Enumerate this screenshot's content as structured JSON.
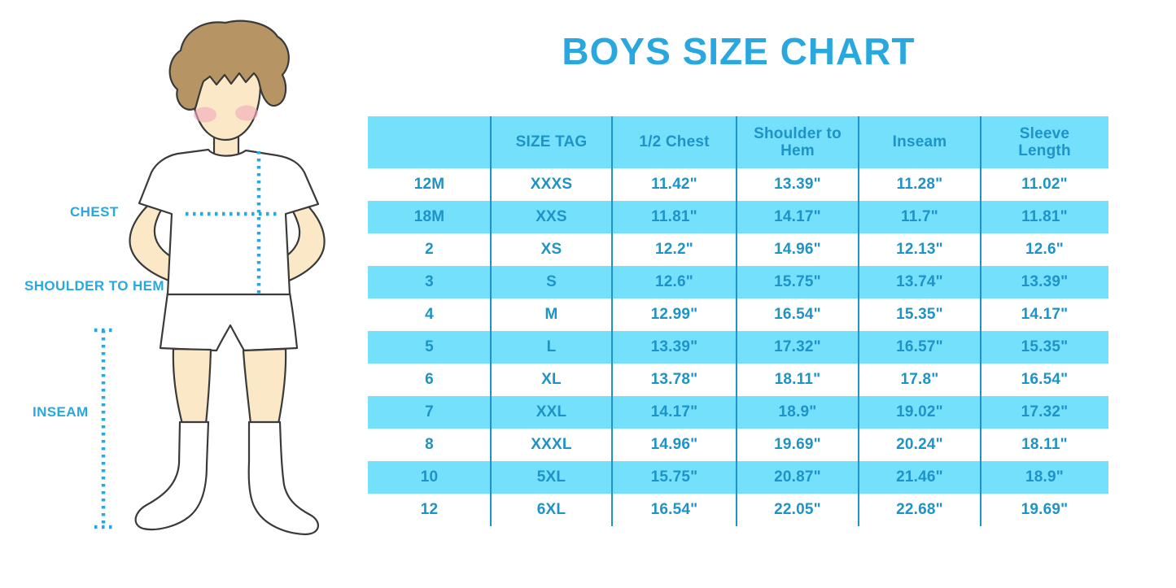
{
  "page": {
    "title": "BOYS SIZE CHART"
  },
  "figure": {
    "illustration": "boy-front-view-tshirt-shorts-socks",
    "labels": [
      {
        "id": "chest",
        "text": "CHEST"
      },
      {
        "id": "shoulder-to-hem",
        "text": "SHOULDER TO HEM"
      },
      {
        "id": "inseam",
        "text": "INSEAM"
      }
    ]
  },
  "colors": {
    "title_blue": "#29A8E0",
    "measurement_line_blue": "#29A8E0",
    "table_text_blue": "#1E93C8",
    "table_stripe_fill": "#74E0FC",
    "column_divider": "#1E93C8",
    "skin": "#FBE8C6",
    "hair_brown": "#B79464",
    "blush_pink": "#F2A8BC",
    "outline_dark": "#3A3A3A"
  },
  "chart_data": {
    "type": "table",
    "columns": [
      "",
      "SIZE TAG",
      "1/2 Chest",
      "Shoulder to Hem",
      "Inseam",
      "Sleeve Length"
    ],
    "rows": [
      [
        "12M",
        "XXXS",
        "11.42\"",
        "13.39\"",
        "11.28\"",
        "11.02\""
      ],
      [
        "18M",
        "XXS",
        "11.81\"",
        "14.17\"",
        "11.7\"",
        "11.81\""
      ],
      [
        "2",
        "XS",
        "12.2\"",
        "14.96\"",
        "12.13\"",
        "12.6\""
      ],
      [
        "3",
        "S",
        "12.6\"",
        "15.75\"",
        "13.74\"",
        "13.39\""
      ],
      [
        "4",
        "M",
        "12.99\"",
        "16.54\"",
        "15.35\"",
        "14.17\""
      ],
      [
        "5",
        "L",
        "13.39\"",
        "17.32\"",
        "16.57\"",
        "15.35\""
      ],
      [
        "6",
        "XL",
        "13.78\"",
        "18.11\"",
        "17.8\"",
        "16.54\""
      ],
      [
        "7",
        "XXL",
        "14.17\"",
        "18.9\"",
        "19.02\"",
        "17.32\""
      ],
      [
        "8",
        "XXXL",
        "14.96\"",
        "19.69\"",
        "20.24\"",
        "18.11\""
      ],
      [
        "10",
        "5XL",
        "15.75\"",
        "20.87\"",
        "21.46\"",
        "18.9\""
      ],
      [
        "12",
        "6XL",
        "16.54\"",
        "22.05\"",
        "22.68\"",
        "19.69\""
      ]
    ]
  }
}
